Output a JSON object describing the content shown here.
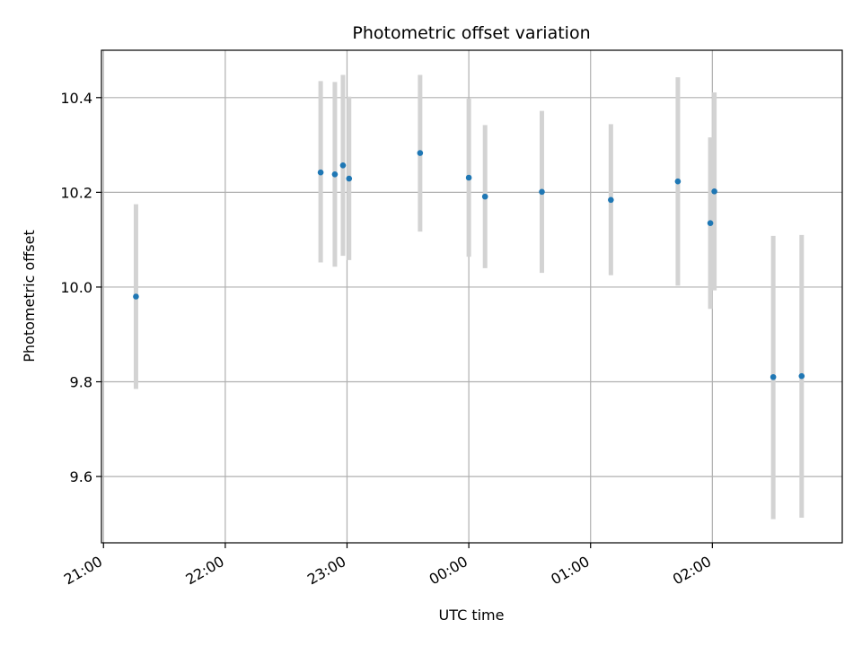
{
  "chart_data": {
    "type": "scatter",
    "title": "Photometric offset variation",
    "xlabel": "UTC time",
    "ylabel": "Photometric offset",
    "xlim": [
      "21:00",
      "03:00"
    ],
    "ylim": [
      9.46,
      10.5
    ],
    "x_ticks": [
      "21:00",
      "22:00",
      "23:00",
      "00:00",
      "01:00",
      "02:00"
    ],
    "y_ticks": [
      9.6,
      9.8,
      10.0,
      10.2,
      10.4
    ],
    "y_tick_labels": [
      "9.6",
      "9.8",
      "10.0",
      "10.2",
      "10.4"
    ],
    "grid": true,
    "colors": {
      "point": "#1f77b4",
      "errorbar": "#d3d3d3",
      "grid": "#b0b0b0"
    },
    "points": [
      {
        "x": "21:16",
        "y": 9.98,
        "err_low": 9.785,
        "err_high": 10.175
      },
      {
        "x": "22:47",
        "y": 10.242,
        "err_low": 10.052,
        "err_high": 10.435
      },
      {
        "x": "22:54",
        "y": 10.238,
        "err_low": 10.043,
        "err_high": 10.433
      },
      {
        "x": "22:58",
        "y": 10.257,
        "err_low": 10.066,
        "err_high": 10.448
      },
      {
        "x": "23:01",
        "y": 10.229,
        "err_low": 10.057,
        "err_high": 10.402
      },
      {
        "x": "23:36",
        "y": 10.283,
        "err_low": 10.117,
        "err_high": 10.448
      },
      {
        "x": "00:00",
        "y": 10.231,
        "err_low": 10.064,
        "err_high": 10.398
      },
      {
        "x": "00:08",
        "y": 10.191,
        "err_low": 10.04,
        "err_high": 10.342
      },
      {
        "x": "00:36",
        "y": 10.201,
        "err_low": 10.03,
        "err_high": 10.372
      },
      {
        "x": "01:10",
        "y": 10.184,
        "err_low": 10.025,
        "err_high": 10.344
      },
      {
        "x": "01:43",
        "y": 10.223,
        "err_low": 10.003,
        "err_high": 10.443
      },
      {
        "x": "01:59",
        "y": 10.135,
        "err_low": 9.954,
        "err_high": 10.316
      },
      {
        "x": "02:01",
        "y": 10.202,
        "err_low": 9.993,
        "err_high": 10.411
      },
      {
        "x": "02:30",
        "y": 9.81,
        "err_low": 9.51,
        "err_high": 10.108
      },
      {
        "x": "02:44",
        "y": 9.812,
        "err_low": 9.513,
        "err_high": 10.11
      }
    ]
  }
}
